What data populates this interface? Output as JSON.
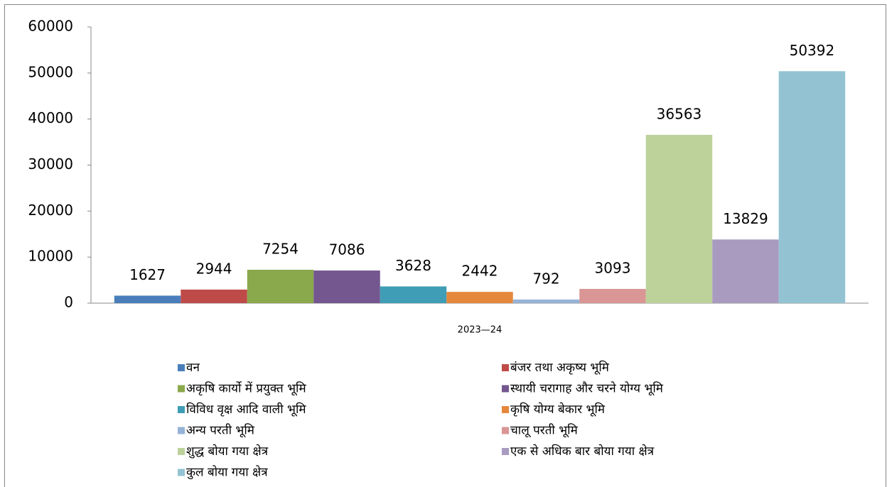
{
  "chart_data": {
    "type": "bar",
    "categories": [
      "2023—24"
    ],
    "series": [
      {
        "name": "वन",
        "color": "#4a7ebb",
        "values": [
          1627
        ]
      },
      {
        "name": "बंजर तथा अकृष्य भूमि",
        "color": "#be4b48",
        "values": [
          2944
        ]
      },
      {
        "name": "अकृषि कार्यो में प्रयुक्त भूमि",
        "color": "#8aa84c",
        "values": [
          7254
        ]
      },
      {
        "name": "स्थायी चरागाह और चरने योग्य भूमि",
        "color": "#74578f",
        "values": [
          7086
        ]
      },
      {
        "name": "विविध वृक्ष आदि वाली भूमि",
        "color": "#3f9db5",
        "values": [
          3628
        ]
      },
      {
        "name": "कृषि योग्य बेकार भूमि",
        "color": "#e5883c",
        "values": [
          2442
        ]
      },
      {
        "name": "अन्य परती भूमि",
        "color": "#95b3d7",
        "values": [
          792
        ]
      },
      {
        "name": "चालू परती भूमि",
        "color": "#d99694",
        "values": [
          3093
        ]
      },
      {
        "name": "शुद्ध बोया गया क्षेत्र",
        "color": "#bcd29a",
        "values": [
          36563
        ]
      },
      {
        "name": "एक से अधिक बार बोया गया क्षेत्र",
        "color": "#a89bbf",
        "values": [
          13829
        ]
      },
      {
        "name": "कुल बोया गया क्षेत्र",
        "color": "#93c3d3",
        "values": [
          50392
        ]
      }
    ],
    "ylim": [
      0,
      60000
    ],
    "yticks": [
      0,
      10000,
      20000,
      30000,
      40000,
      50000,
      60000
    ],
    "legend": "bottom"
  }
}
